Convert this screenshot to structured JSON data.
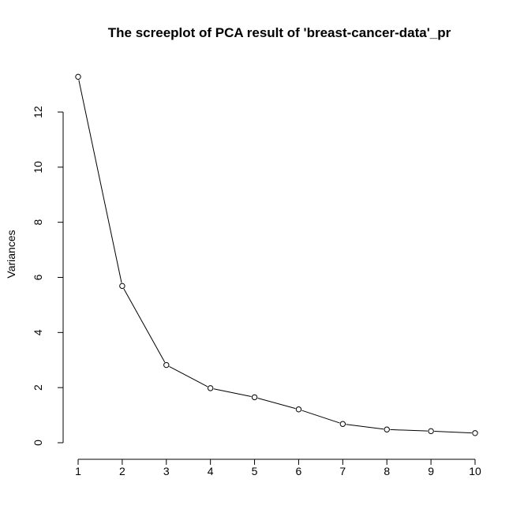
{
  "chart_data": {
    "type": "line",
    "title": "The screeplot of PCA result of 'breast-cancer-data'_pr",
    "xlabel": "",
    "ylabel": "Variances",
    "x": [
      1,
      2,
      3,
      4,
      5,
      6,
      7,
      8,
      9,
      10
    ],
    "x_ticks": [
      "1",
      "2",
      "3",
      "4",
      "5",
      "6",
      "7",
      "8",
      "9",
      "10"
    ],
    "values": [
      13.28,
      5.69,
      2.82,
      1.98,
      1.65,
      1.21,
      0.68,
      0.48,
      0.42,
      0.35
    ],
    "y_ticks": [
      0,
      2,
      4,
      6,
      8,
      10,
      12
    ],
    "ylim": [
      0,
      13.28
    ],
    "grid": false,
    "marker": "open-circle"
  }
}
